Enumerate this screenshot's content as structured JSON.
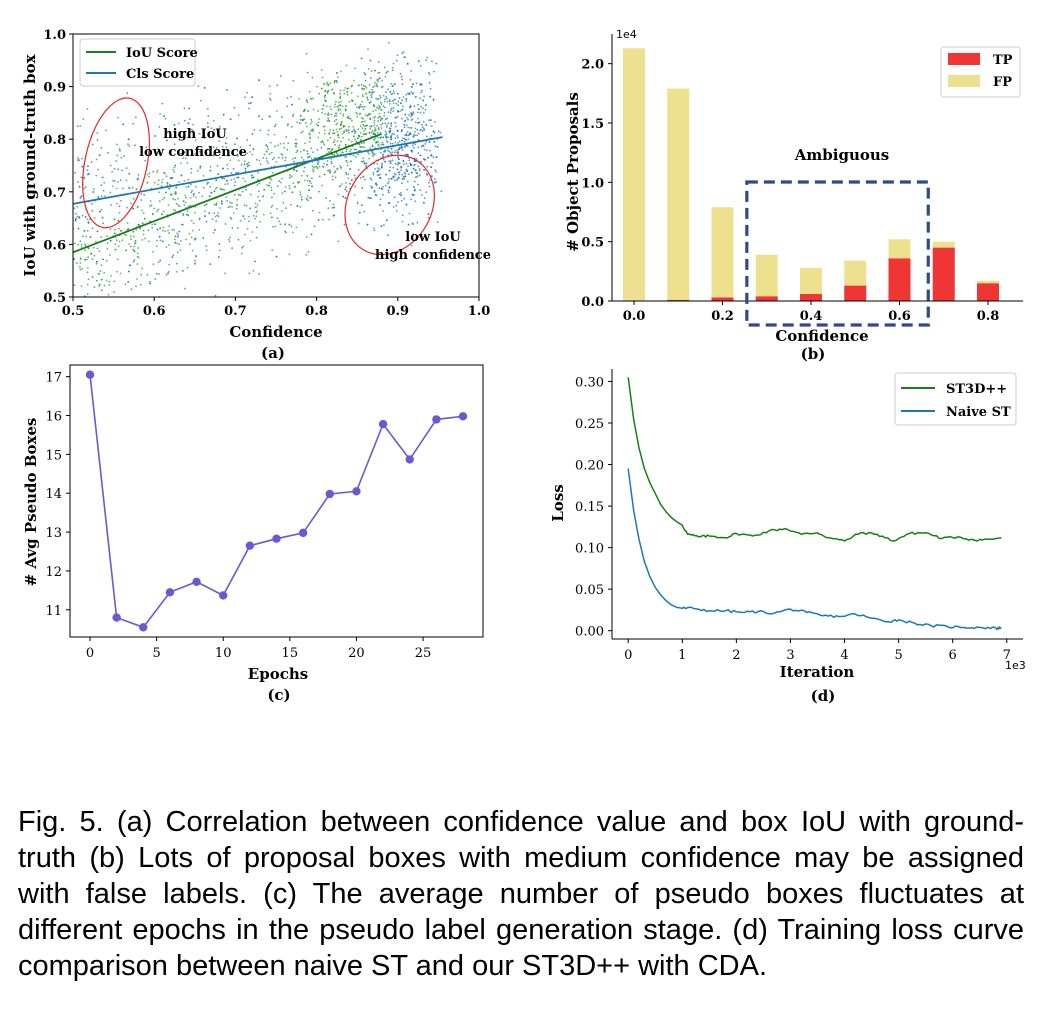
{
  "caption": "Fig. 5. (a) Correlation between confidence value and box IoU with ground-truth (b) Lots of proposal boxes with medium confidence may be assigned with false labels. (c) The average number of pseudo boxes fluctuates at different epochs in the pseudo label generation stage. (d) Training loss curve comparison between naive ST and our ST3D++ with CDA.",
  "chart_data": [
    {
      "panel": "(a)",
      "type": "scatter",
      "xlabel": "Confidence",
      "ylabel": "IoU with ground-truth box",
      "xlim": [
        0.5,
        1.0
      ],
      "ylim": [
        0.5,
        1.0
      ],
      "xticks": [
        "0.5",
        "0.6",
        "0.7",
        "0.8",
        "0.9",
        "1.0"
      ],
      "yticks": [
        "0.5",
        "0.6",
        "0.7",
        "0.8",
        "0.9",
        "1.0"
      ],
      "legend_position": "top-left",
      "series": [
        {
          "name": "IoU Score",
          "color": "#2ca02c",
          "line_color": "#1a7f1a",
          "fit_line": {
            "x": [
              0.5,
              0.88
            ],
            "y": [
              0.585,
              0.81
            ]
          }
        },
        {
          "name": "Cls Score",
          "color": "#1f77b4",
          "line_color": "#1f77b4",
          "fit_line": {
            "x": [
              0.5,
              0.955
            ],
            "y": [
              0.677,
              0.804
            ]
          }
        }
      ],
      "annotations": [
        {
          "text_lines": [
            "high IoU",
            "low confidence"
          ],
          "ellipse_center": [
            0.553,
            0.755
          ],
          "ellipse_color": "#e8262a"
        },
        {
          "text_lines": [
            "low IoU",
            "high confidence"
          ],
          "ellipse_center": [
            0.89,
            0.675
          ],
          "ellipse_color": "#e8262a"
        }
      ]
    },
    {
      "panel": "(b)",
      "type": "bar",
      "stacked": true,
      "xlabel": "Confidence",
      "ylabel": "# Object Proposals",
      "offset_text": "1e4",
      "x": [
        0.0,
        0.1,
        0.2,
        0.3,
        0.4,
        0.5,
        0.6,
        0.7,
        0.8
      ],
      "xticks": [
        "0.0",
        "0.2",
        "0.4",
        "0.6",
        "0.8"
      ],
      "yticks": [
        "0.0",
        "0.5",
        "1.0",
        "1.5",
        "2.0"
      ],
      "ylim": [
        0,
        2.25
      ],
      "legend_position": "top-right",
      "series": [
        {
          "name": "TP",
          "color": "#f03535",
          "values": [
            0.0,
            0.01,
            0.03,
            0.04,
            0.06,
            0.13,
            0.36,
            0.45,
            0.15
          ]
        },
        {
          "name": "FP",
          "color": "#ede08e",
          "values": [
            2.13,
            1.78,
            0.76,
            0.35,
            0.22,
            0.21,
            0.16,
            0.05,
            0.02
          ]
        }
      ],
      "annotation": {
        "text": "Ambiguous",
        "box_range_x": [
          0.255,
          0.665
        ],
        "box_color": "#2b4b8c"
      }
    },
    {
      "panel": "(c)",
      "type": "line",
      "xlabel": "Epochs",
      "ylabel": "# Avg Pseudo Boxes",
      "color": "#6a5acd",
      "x": [
        0,
        2,
        4,
        6,
        8,
        10,
        12,
        14,
        16,
        18,
        20,
        22,
        24,
        26,
        28
      ],
      "y": [
        17.05,
        10.8,
        10.55,
        11.45,
        11.72,
        11.37,
        12.65,
        12.83,
        12.98,
        13.98,
        14.05,
        15.78,
        14.87,
        15.9,
        15.98
      ],
      "xticks": [
        "0",
        "5",
        "10",
        "15",
        "20",
        "25"
      ],
      "yticks": [
        "11",
        "12",
        "13",
        "14",
        "15",
        "16",
        "17"
      ],
      "xlim": [
        -1.5,
        29.5
      ],
      "ylim": [
        10.3,
        17.3
      ]
    },
    {
      "panel": "(d)",
      "type": "line",
      "xlabel": "Iteration",
      "ylabel": "Loss",
      "offset_text": "1e3",
      "xticks": [
        "0",
        "1",
        "2",
        "3",
        "4",
        "5",
        "6",
        "7"
      ],
      "yticks": [
        "0.00",
        "0.05",
        "0.10",
        "0.15",
        "0.20",
        "0.25",
        "0.30"
      ],
      "xlim": [
        -0.3,
        7.3
      ],
      "ylim": [
        -0.01,
        0.315
      ],
      "legend_position": "top-right",
      "series": [
        {
          "name": "ST3D++",
          "color": "#1a7f1a",
          "x": [
            0,
            0.1,
            0.2,
            0.3,
            0.4,
            0.5,
            0.6,
            0.7,
            0.8,
            0.9,
            1.0,
            1.1,
            1.3,
            1.5,
            1.8,
            2.0,
            2.3,
            2.6,
            2.9,
            3.2,
            3.5,
            3.7,
            4.0,
            4.3,
            4.6,
            4.9,
            5.2,
            5.5,
            5.8,
            6.1,
            6.4,
            6.7,
            6.9
          ],
          "y": [
            0.305,
            0.255,
            0.22,
            0.195,
            0.178,
            0.165,
            0.152,
            0.143,
            0.136,
            0.131,
            0.127,
            0.116,
            0.113,
            0.114,
            0.112,
            0.117,
            0.114,
            0.12,
            0.123,
            0.116,
            0.118,
            0.112,
            0.108,
            0.118,
            0.116,
            0.108,
            0.117,
            0.118,
            0.111,
            0.113,
            0.109,
            0.11,
            0.112
          ]
        },
        {
          "name": "Naive ST",
          "color": "#1f77b4",
          "x": [
            0,
            0.1,
            0.2,
            0.3,
            0.4,
            0.5,
            0.6,
            0.7,
            0.8,
            0.9,
            1.0,
            1.2,
            1.5,
            1.8,
            2.1,
            2.4,
            2.7,
            3.0,
            3.3,
            3.6,
            3.9,
            4.2,
            4.5,
            4.8,
            5.0,
            5.3,
            5.6,
            5.9,
            6.2,
            6.5,
            6.8,
            6.9
          ],
          "y": [
            0.195,
            0.145,
            0.11,
            0.083,
            0.065,
            0.052,
            0.043,
            0.036,
            0.031,
            0.028,
            0.027,
            0.027,
            0.024,
            0.024,
            0.022,
            0.023,
            0.021,
            0.026,
            0.022,
            0.018,
            0.017,
            0.02,
            0.015,
            0.011,
            0.013,
            0.009,
            0.006,
            0.005,
            0.004,
            0.004,
            0.003,
            0.003
          ]
        }
      ]
    }
  ]
}
